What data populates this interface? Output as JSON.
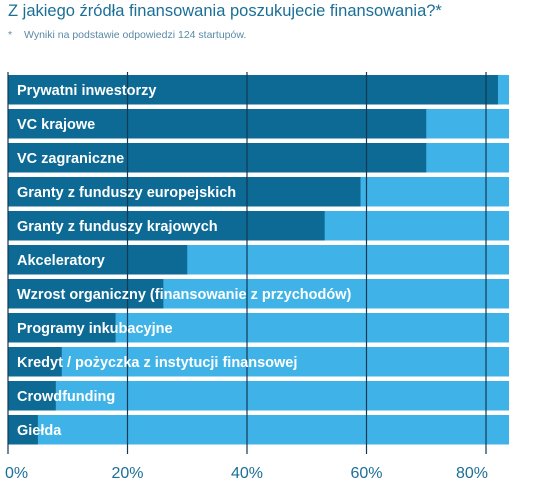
{
  "title": "Z jakiego źródła finansowania poszukujecie finansowania?*",
  "footnote": {
    "marker": "*",
    "text": "Wyniki na podstawie odpowiedzi 124 startupów."
  },
  "colors": {
    "bar": "#0c6a95",
    "track": "#3fb3e8",
    "gridline": "#123a55",
    "axis_text": "#1b6f97",
    "title": "#1b6f97"
  },
  "chart_data": {
    "type": "bar",
    "orientation": "horizontal",
    "title": "Z jakiego źródła finansowania poszukujecie finansowania?*",
    "xlabel": "",
    "ylabel": "",
    "xlim": [
      0,
      85
    ],
    "ticks": [
      0,
      20,
      40,
      60,
      80
    ],
    "tick_labels": [
      "0%",
      "20%",
      "40%",
      "60%",
      "80%"
    ],
    "grid": true,
    "categories": [
      "Prywatni inwestorzy",
      "VC krajowe",
      "VC zagraniczne",
      "Granty z funduszy europejskich",
      "Granty z funduszy krajowych",
      "Akceleratory",
      "Wzrost organiczny (finansowanie z przychodów)",
      "Programy inkubacyjne",
      "Kredyt / pożyczka z instytucji finansowej",
      "Crowdfunding",
      "Giełda"
    ],
    "values": [
      82,
      70,
      70,
      59,
      53,
      30,
      26,
      18,
      9,
      8,
      5
    ]
  }
}
